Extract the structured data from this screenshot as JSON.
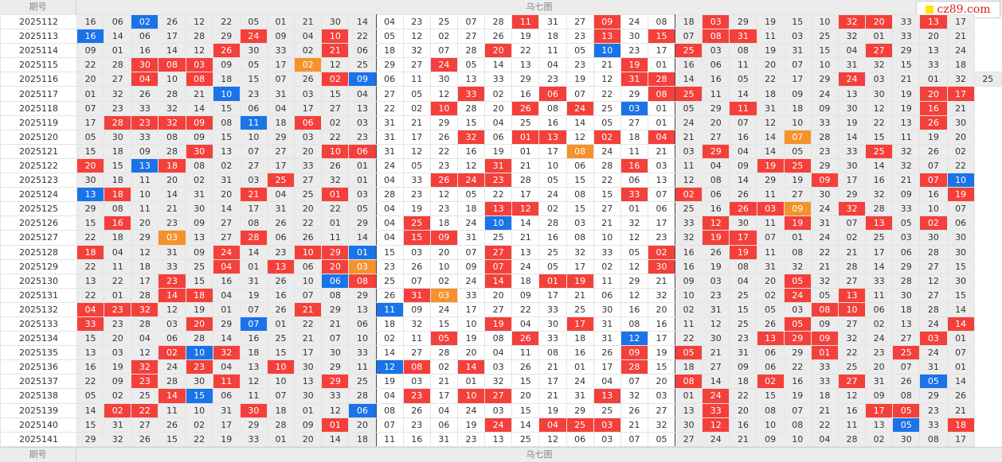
{
  "header": {
    "period_label": "期号",
    "title": "乌七图"
  },
  "footer": {
    "period_label": "期号",
    "title": "乌七图"
  },
  "logo": {
    "text": "cz89.com"
  },
  "colors": {
    "red": "#f4403b",
    "blue": "#1a73e8",
    "orange": "#f5922b"
  },
  "rows": [
    {
      "period": "2025112",
      "cells": [
        "16",
        "06",
        "02:b",
        "26",
        "12",
        "22",
        "05",
        "01",
        "21",
        "30",
        "14",
        "04",
        "23",
        "25",
        "07",
        "28",
        "11:r",
        "31",
        "27",
        "09:r",
        "24",
        "08",
        "18",
        "03:r",
        "29",
        "19",
        "15",
        "10",
        "32:r",
        "20:r",
        "33",
        "13:r",
        "17"
      ]
    },
    {
      "period": "2025113",
      "cells": [
        "16:b",
        "14",
        "06",
        "17",
        "28",
        "29",
        "24:r",
        "09",
        "04",
        "10:r",
        "22",
        "05",
        "12",
        "02",
        "27",
        "26",
        "19",
        "18",
        "23",
        "13:r",
        "30",
        "15:r",
        "07",
        "08:r",
        "31:r",
        "11",
        "03",
        "25",
        "32",
        "01",
        "33",
        "20",
        "21"
      ]
    },
    {
      "period": "2025114",
      "cells": [
        "09",
        "01",
        "16",
        "14",
        "12",
        "26:r",
        "30",
        "33",
        "02",
        "21:r",
        "06",
        "18",
        "32",
        "07",
        "28",
        "20:r",
        "22",
        "11",
        "05",
        "10:b",
        "23",
        "17",
        "25:r",
        "03",
        "08",
        "19",
        "31",
        "15",
        "04",
        "27:r",
        "29",
        "13",
        "24"
      ]
    },
    {
      "period": "2025115",
      "cells": [
        "22",
        "28",
        "30:r",
        "08:r",
        "03:r",
        "09",
        "05",
        "17",
        "02:o",
        "12",
        "25",
        "29",
        "27",
        "24:r",
        "05",
        "14",
        "13",
        "04",
        "23",
        "21",
        "19:r",
        "01",
        "16",
        "06",
        "11",
        "20",
        "07",
        "10",
        "31",
        "32",
        "15",
        "33",
        "18"
      ]
    },
    {
      "period": "2025116",
      "cells": [
        "20",
        "27",
        "04:r",
        "10",
        "08:r",
        "18",
        "15",
        "07",
        "26",
        "02:r",
        "09:b",
        "06",
        "11",
        "30",
        "13",
        "33",
        "29",
        "23",
        "19",
        "12",
        "31:r",
        "28:r",
        "14",
        "16",
        "05",
        "22",
        "17",
        "29",
        "24:r",
        "03",
        "21",
        "01",
        "32",
        "25"
      ]
    },
    {
      "period": "2025117",
      "cells": [
        "01",
        "32",
        "26",
        "28",
        "21",
        "10:b",
        "23",
        "31",
        "03",
        "15",
        "04",
        "27",
        "05",
        "12",
        "33:r",
        "02",
        "16",
        "06:r",
        "07",
        "22",
        "29",
        "08:r",
        "25:r",
        "11",
        "14",
        "18",
        "09",
        "24",
        "13",
        "30",
        "19",
        "20:r",
        "17:r"
      ]
    },
    {
      "period": "2025118",
      "cells": [
        "07",
        "23",
        "33",
        "32",
        "14",
        "15",
        "06",
        "04",
        "17",
        "27",
        "13",
        "22",
        "02",
        "10:r",
        "28",
        "20",
        "26:r",
        "08",
        "24:r",
        "25",
        "03:b",
        "01",
        "05",
        "29",
        "11:r",
        "31",
        "18",
        "09",
        "30",
        "12",
        "19",
        "16:r",
        "21"
      ]
    },
    {
      "period": "2025119",
      "cells": [
        "17",
        "28:r",
        "23:r",
        "32:r",
        "09:r",
        "08",
        "11:b",
        "18",
        "06:r",
        "02",
        "03",
        "31",
        "21",
        "29",
        "15",
        "04",
        "25",
        "16",
        "14",
        "05",
        "27",
        "01",
        "24",
        "20",
        "07",
        "12",
        "10",
        "33",
        "19",
        "22",
        "13",
        "26:r",
        "30"
      ]
    },
    {
      "period": "2025120",
      "cells": [
        "05",
        "30",
        "33",
        "08",
        "09",
        "15",
        "10",
        "29",
        "03",
        "22",
        "23",
        "31",
        "17",
        "26",
        "32:r",
        "06",
        "01:r",
        "13:r",
        "12",
        "02:r",
        "18",
        "04:r",
        "21",
        "27",
        "16",
        "14",
        "07:o",
        "28",
        "14",
        "15",
        "11",
        "19",
        "20"
      ]
    },
    {
      "period": "2025121",
      "cells": [
        "15",
        "18",
        "09",
        "28",
        "30:r",
        "13",
        "07",
        "27",
        "20",
        "10:r",
        "06:r",
        "31",
        "12",
        "22",
        "16",
        "19",
        "01",
        "17",
        "08:o",
        "24",
        "11",
        "21",
        "03",
        "29:r",
        "04",
        "14",
        "05",
        "23",
        "33",
        "25:r",
        "32",
        "26",
        "02"
      ]
    },
    {
      "period": "2025122",
      "cells": [
        "20:r",
        "15",
        "13:b",
        "18:r",
        "08",
        "02",
        "27",
        "17",
        "33",
        "26",
        "01",
        "24",
        "05",
        "23",
        "12",
        "31:r",
        "21",
        "10",
        "06",
        "28",
        "16:r",
        "03",
        "11",
        "04",
        "09",
        "19:r",
        "25:r",
        "29",
        "30",
        "14",
        "32",
        "07",
        "22"
      ]
    },
    {
      "period": "2025123",
      "cells": [
        "30",
        "18",
        "11",
        "20",
        "02",
        "31",
        "03",
        "25:r",
        "27",
        "32",
        "01",
        "04",
        "33",
        "26:r",
        "24:r",
        "23:r",
        "28",
        "05",
        "15",
        "22",
        "06",
        "13",
        "12",
        "08",
        "14",
        "29",
        "19",
        "09:r",
        "17",
        "16",
        "21",
        "07:r",
        "10:b"
      ]
    },
    {
      "period": "2025124",
      "cells": [
        "13:b",
        "18:r",
        "10",
        "14",
        "31",
        "20",
        "21:r",
        "04",
        "25",
        "01:r",
        "03",
        "28",
        "23",
        "12",
        "05",
        "22",
        "17",
        "24",
        "08",
        "15",
        "33:r",
        "07",
        "02:r",
        "06",
        "26",
        "11",
        "27",
        "30",
        "29",
        "32",
        "09",
        "16",
        "19:r"
      ]
    },
    {
      "period": "2025125",
      "cells": [
        "29",
        "08",
        "11",
        "21",
        "30",
        "14",
        "17",
        "31",
        "20",
        "22",
        "05",
        "04",
        "19",
        "23",
        "18",
        "13:r",
        "12:r",
        "02",
        "15",
        "27",
        "01",
        "06",
        "25",
        "16",
        "26:r",
        "03:r",
        "09:o",
        "24",
        "32:r",
        "28",
        "33",
        "10",
        "07"
      ]
    },
    {
      "period": "2025126",
      "cells": [
        "15",
        "16:r",
        "20",
        "23",
        "09",
        "27",
        "08",
        "26",
        "22",
        "01",
        "29",
        "04",
        "25:r",
        "18",
        "24",
        "10:b",
        "14",
        "28",
        "03",
        "21",
        "32",
        "17",
        "33",
        "12:r",
        "30",
        "11",
        "19:r",
        "31",
        "07",
        "13:r",
        "05",
        "02:r",
        "06"
      ]
    },
    {
      "period": "2025127",
      "cells": [
        "22",
        "18",
        "29",
        "03:o",
        "13",
        "27",
        "28:r",
        "06",
        "26",
        "11",
        "14",
        "04",
        "15:r",
        "09:r",
        "31",
        "25",
        "21",
        "16",
        "08",
        "10",
        "12",
        "23",
        "32",
        "19:r",
        "17:r",
        "07",
        "01",
        "24",
        "02",
        "25",
        "03",
        "30",
        "30"
      ]
    },
    {
      "period": "2025128",
      "cells": [
        "18:r",
        "04",
        "12",
        "31",
        "09",
        "24:r",
        "14",
        "23",
        "10:r",
        "29:r",
        "01:b",
        "15",
        "03",
        "20",
        "07",
        "27:r",
        "13",
        "25",
        "32",
        "33",
        "05",
        "02:r",
        "16",
        "26",
        "19:r",
        "11",
        "08",
        "22",
        "21",
        "17",
        "06",
        "28",
        "30"
      ]
    },
    {
      "period": "2025129",
      "cells": [
        "22",
        "11",
        "18",
        "33",
        "25",
        "04:r",
        "01",
        "13:r",
        "06",
        "20:r",
        "03:o",
        "23",
        "26",
        "10",
        "09",
        "07:r",
        "24",
        "05",
        "17",
        "02",
        "12",
        "30:r",
        "16",
        "19",
        "08",
        "31",
        "32",
        "21",
        "28",
        "14",
        "29",
        "27",
        "15"
      ]
    },
    {
      "period": "2025130",
      "cells": [
        "13",
        "22",
        "17",
        "23:r",
        "15",
        "16",
        "31",
        "26",
        "10",
        "06:b",
        "08:r",
        "25",
        "07",
        "02",
        "24",
        "14:r",
        "18",
        "01:r",
        "19:r",
        "11",
        "29",
        "21",
        "09",
        "03",
        "04",
        "20",
        "05:r",
        "32",
        "27",
        "33",
        "28",
        "12",
        "30"
      ]
    },
    {
      "period": "2025131",
      "cells": [
        "22",
        "01",
        "28",
        "14:r",
        "18:r",
        "04",
        "19",
        "16",
        "07",
        "08",
        "29",
        "26",
        "31:r",
        "03:o",
        "33",
        "20",
        "09",
        "17",
        "21",
        "06",
        "12",
        "32",
        "10",
        "23",
        "25",
        "02",
        "24:r",
        "05",
        "13:r",
        "11",
        "30",
        "27",
        "15"
      ]
    },
    {
      "period": "2025132",
      "cells": [
        "04:r",
        "23:r",
        "32:r",
        "12",
        "19",
        "01",
        "07",
        "26",
        "21:r",
        "29",
        "13",
        "11:b",
        "09",
        "24",
        "17",
        "27",
        "22",
        "33",
        "25",
        "30",
        "16",
        "20",
        "02",
        "31",
        "15",
        "05",
        "03",
        "08:r",
        "10:r",
        "06",
        "18",
        "28",
        "14"
      ]
    },
    {
      "period": "2025133",
      "cells": [
        "33:r",
        "23",
        "28",
        "03",
        "20:r",
        "29",
        "07:b",
        "01",
        "22",
        "21",
        "06",
        "18",
        "32",
        "15",
        "10",
        "19:r",
        "04",
        "30",
        "17:r",
        "31",
        "08",
        "16",
        "11",
        "12",
        "25",
        "26",
        "05:r",
        "09",
        "27",
        "02",
        "13",
        "24",
        "14:r"
      ]
    },
    {
      "period": "2025134",
      "cells": [
        "15",
        "20",
        "04",
        "06",
        "28",
        "14",
        "16",
        "25",
        "21",
        "07",
        "10",
        "02",
        "11",
        "05:r",
        "19",
        "08",
        "26:r",
        "33",
        "18",
        "31",
        "12:b",
        "17",
        "22",
        "30",
        "23",
        "13:r",
        "29:r",
        "09:r",
        "32",
        "24",
        "27",
        "03:r",
        "01"
      ]
    },
    {
      "period": "2025135",
      "cells": [
        "13",
        "03",
        "12",
        "02:r",
        "10:b",
        "32:r",
        "18",
        "15",
        "17",
        "30",
        "33",
        "14",
        "27",
        "28",
        "20",
        "04",
        "11",
        "08",
        "16",
        "26",
        "09:r",
        "19",
        "05:r",
        "21",
        "31",
        "06",
        "29",
        "01:r",
        "22",
        "23",
        "25:r",
        "24",
        "07"
      ]
    },
    {
      "period": "2025136",
      "cells": [
        "16",
        "19",
        "32:r",
        "24",
        "23:r",
        "04",
        "13",
        "10:r",
        "30",
        "29",
        "11",
        "12:b",
        "08:r",
        "02",
        "14:r",
        "03",
        "26",
        "21",
        "01",
        "17",
        "28:r",
        "15",
        "18",
        "27",
        "09",
        "06",
        "22",
        "33",
        "25",
        "20",
        "07",
        "31",
        "01"
      ]
    },
    {
      "period": "2025137",
      "cells": [
        "22",
        "09",
        "23:r",
        "28",
        "30",
        "11:r",
        "12",
        "10",
        "13",
        "29:r",
        "25",
        "19",
        "03",
        "21",
        "01",
        "32",
        "15",
        "17",
        "24",
        "04",
        "07",
        "20",
        "08:r",
        "14",
        "18",
        "02:r",
        "16",
        "33",
        "27:r",
        "31",
        "26",
        "05:b",
        "14"
      ]
    },
    {
      "period": "2025138",
      "cells": [
        "05",
        "02",
        "25",
        "14:r",
        "15:b",
        "06",
        "11",
        "07",
        "30",
        "33",
        "28",
        "04",
        "23:r",
        "17",
        "10:r",
        "27:r",
        "20",
        "21",
        "31",
        "13:r",
        "32",
        "03",
        "01",
        "24:r",
        "22",
        "15",
        "19",
        "18",
        "12",
        "09",
        "08",
        "29",
        "26"
      ]
    },
    {
      "period": "2025139",
      "cells": [
        "14",
        "02:r",
        "22:r",
        "11",
        "10",
        "31",
        "30:r",
        "18",
        "01",
        "12",
        "06:b",
        "08",
        "26",
        "04",
        "24",
        "03",
        "15",
        "19",
        "29",
        "25",
        "26",
        "27",
        "13",
        "33:r",
        "20",
        "08",
        "07",
        "21",
        "16",
        "17:r",
        "05:r",
        "23",
        "21"
      ]
    },
    {
      "period": "2025140",
      "cells": [
        "15",
        "31",
        "27",
        "26",
        "02",
        "17",
        "29",
        "28",
        "09",
        "01:r",
        "20",
        "07",
        "23",
        "06",
        "19",
        "24:r",
        "14",
        "04:r",
        "25:r",
        "03:r",
        "21",
        "32",
        "30",
        "12:r",
        "16",
        "10",
        "08",
        "22",
        "11",
        "13",
        "05:b",
        "33",
        "18:r"
      ]
    },
    {
      "period": "2025141",
      "cells": [
        "29",
        "32",
        "26",
        "15",
        "22",
        "19",
        "33",
        "01",
        "20",
        "14",
        "18",
        "11",
        "16",
        "31",
        "23",
        "13",
        "25",
        "12",
        "06",
        "03",
        "07",
        "05",
        "27",
        "24",
        "21",
        "09",
        "10",
        "04",
        "28",
        "02",
        "30",
        "08",
        "17"
      ]
    }
  ]
}
